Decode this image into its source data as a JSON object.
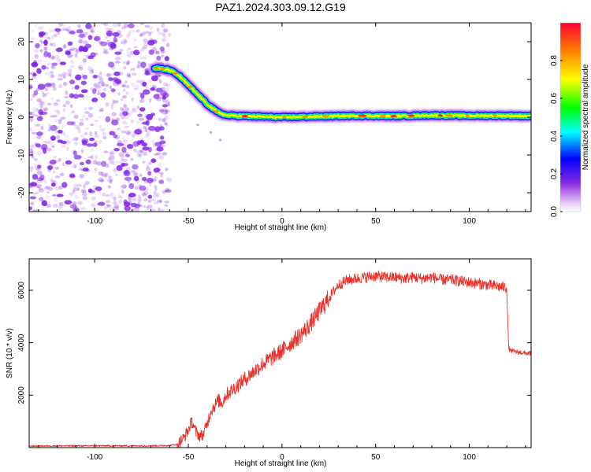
{
  "title": "PAZ1.2024.303.09.12.G19",
  "colors": {
    "snr_line": "#e8322b",
    "track_core": "#e8322b",
    "scatter": "#7f1fe6"
  },
  "chart_data": [
    {
      "type": "heatmap",
      "xlabel": "Height of straight line (km)",
      "ylabel": "Frequency (Hz)",
      "xlim": [
        -135,
        133
      ],
      "ylim": [
        -25,
        25
      ],
      "x_ticks": [
        -100,
        -50,
        0,
        50,
        100
      ],
      "y_ticks": [
        20,
        10,
        0,
        -10,
        -20
      ],
      "x_tick_labels": [
        "-100",
        "-50",
        "0",
        "50",
        "100"
      ],
      "y_tick_labels": [
        "20",
        "10",
        "0",
        "-10",
        "-20"
      ],
      "colorbar": {
        "label": "Normalized spectral amplitude",
        "range": [
          0,
          1
        ],
        "ticks": [
          0.0,
          0.2,
          0.4,
          0.6,
          0.8
        ],
        "tick_labels": [
          "0.0",
          "0.2",
          "0.4",
          "0.6",
          "0.8"
        ],
        "colormap": "rainbow (violet to red)"
      },
      "noise_region_x": [
        -135,
        -60
      ],
      "ridge": {
        "x": [
          -68,
          -60,
          -55,
          -50,
          -45,
          -40,
          -35,
          -30,
          -20,
          0,
          20,
          40,
          60,
          80,
          100,
          120,
          133
        ],
        "frequency": [
          13,
          12.5,
          11,
          8.5,
          6,
          3.5,
          1.5,
          0.5,
          0.3,
          0,
          0.2,
          0.4,
          0.3,
          0.5,
          0.4,
          0.4,
          0.3
        ]
      }
    },
    {
      "type": "line",
      "xlabel": "Height of straight line (km)",
      "ylabel": "SNR (10 * v/v)",
      "xlim": [
        -135,
        133
      ],
      "ylim": [
        0,
        7200
      ],
      "x_ticks": [
        -100,
        -50,
        0,
        50,
        100
      ],
      "y_ticks": [
        2000,
        4000,
        6000
      ],
      "x_tick_labels": [
        "-100",
        "-50",
        "0",
        "50",
        "100"
      ],
      "y_tick_labels": [
        "2000",
        "4000",
        "6000"
      ],
      "series": [
        {
          "x": [
            -135,
            -100,
            -70,
            -60,
            -56,
            -52,
            -50,
            -48,
            -46,
            -44,
            -42,
            -40,
            -38,
            -36,
            -34,
            -32,
            -30,
            -25,
            -20,
            -15,
            -10,
            -5,
            0,
            5,
            10,
            15,
            20,
            25,
            30,
            35,
            40,
            45,
            50,
            55,
            60,
            65,
            70,
            75,
            80,
            85,
            90,
            95,
            100,
            105,
            110,
            115,
            120,
            121,
            122,
            125,
            130,
            133
          ],
          "values": [
            60,
            70,
            70,
            80,
            120,
            400,
            700,
            1000,
            600,
            450,
            500,
            900,
            1400,
            1600,
            1800,
            1700,
            2000,
            2300,
            2600,
            2900,
            3200,
            3450,
            3700,
            4000,
            4300,
            4700,
            5200,
            5700,
            6200,
            6400,
            6450,
            6500,
            6550,
            6500,
            6500,
            6450,
            6500,
            6450,
            6500,
            6400,
            6400,
            6350,
            6300,
            6250,
            6200,
            6150,
            6100,
            3800,
            3700,
            3650,
            3600,
            3600
          ]
        }
      ]
    }
  ]
}
